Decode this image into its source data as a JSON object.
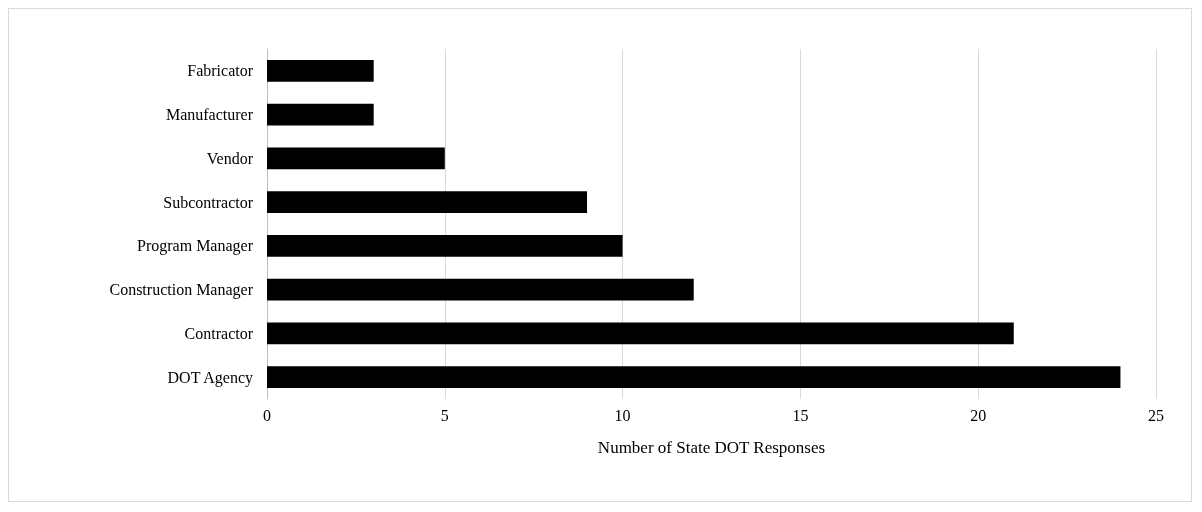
{
  "chart_data": {
    "type": "bar",
    "orientation": "horizontal",
    "xlabel": "Number of State DOT Responses",
    "categories": [
      "Fabricator",
      "Manufacturer",
      "Vendor",
      "Subcontractor",
      "Program Manager",
      "Construction Manager",
      "Contractor",
      "DOT Agency"
    ],
    "values": [
      3,
      3,
      5,
      9,
      10,
      12,
      21,
      24
    ],
    "color": "#000000",
    "xlim": [
      0,
      25
    ],
    "xticks": [
      0,
      5,
      10,
      15,
      20,
      25
    ],
    "grid": "x"
  }
}
